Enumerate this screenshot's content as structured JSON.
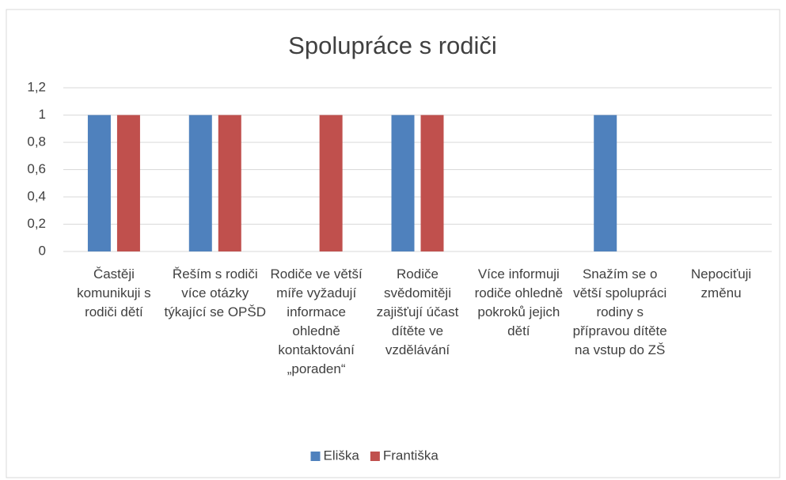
{
  "chart_data": {
    "type": "bar",
    "title": "Spolupráce s rodiči",
    "categories": [
      "Častěji komunikuji s rodiči dětí",
      "Řeším s rodiči více otázky týkající se OPŠD",
      "Rodiče ve větší míře vyžadují informace ohledně kontaktování „poraden“",
      "Rodiče svědomitěji zajišťují účast dítěte ve vzdělávání",
      "Více informuji rodiče ohledně pokroků jejich dětí",
      "Snažím se o větší spolupráci rodiny s přípravou dítěte na vstup do ZŠ",
      "Nepociťuji změnu"
    ],
    "series": [
      {
        "name": "Eliška",
        "color": "#4f81bd",
        "values": [
          1,
          1,
          0,
          1,
          0,
          1,
          0
        ]
      },
      {
        "name": "Františka",
        "color": "#c0504d",
        "values": [
          1,
          1,
          1,
          1,
          0,
          0,
          0
        ]
      }
    ],
    "ylim": [
      0,
      1.2
    ],
    "yticks": [
      0,
      {
        "value": 0.2,
        "label": "0,2"
      },
      {
        "value": 0.4,
        "label": "0,4"
      },
      {
        "value": 0.6,
        "label": "0,6"
      },
      {
        "value": 0.8,
        "label": "0,8"
      },
      1,
      {
        "value": 1.2,
        "label": "1,2"
      }
    ],
    "grid": true,
    "legend": "bottom"
  }
}
